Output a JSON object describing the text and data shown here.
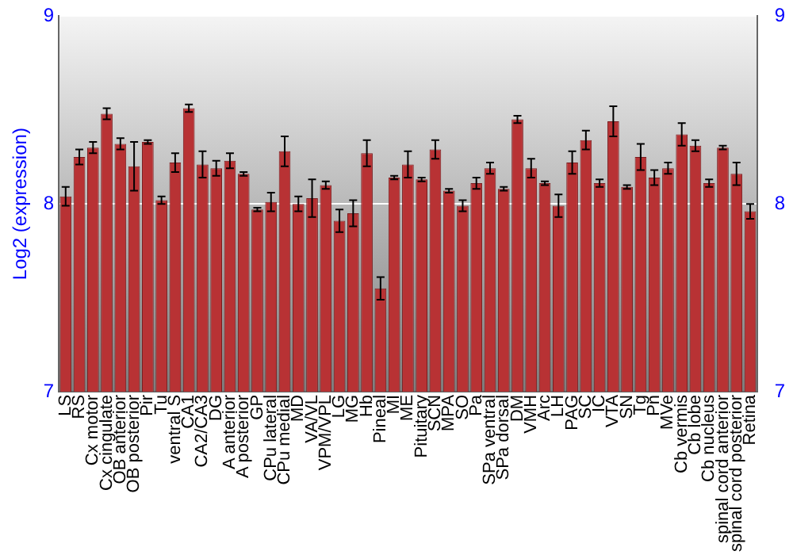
{
  "chart_data": {
    "type": "bar",
    "ylabel": "Log2 (expression)",
    "categories": [
      "LS",
      "RS",
      "Cx motor",
      "Cx cingulate",
      "OB anterior",
      "OB posterior",
      "Pir",
      "Tu",
      "ventral S",
      "CA1",
      "CA2/CA3",
      "DG",
      "A anterior",
      "A posterior",
      "GP",
      "CPu lateral",
      "CPu medial",
      "MD",
      "VA/VL",
      "VPM/VPL",
      "LG",
      "MG",
      "Hb",
      "Pineal",
      "MI",
      "ME",
      "Pituitary",
      "SCN",
      "MPA",
      "SO",
      "Pa",
      "SPa ventral",
      "SPa dorsal",
      "DM",
      "VMH",
      "Arc",
      "LH",
      "PAG",
      "SC",
      "IC",
      "VTA",
      "SN",
      "Tg",
      "Pn",
      "MVe",
      "Cb vermis",
      "Cb lobe",
      "Cb nucleus",
      "spinal cord anterior",
      "spinal cord posterior",
      "Retina"
    ],
    "values": [
      8.04,
      8.25,
      8.3,
      8.48,
      8.32,
      8.2,
      8.33,
      8.02,
      8.22,
      8.51,
      8.21,
      8.19,
      8.23,
      8.16,
      7.97,
      8.01,
      8.28,
      8.0,
      8.03,
      8.1,
      7.91,
      7.95,
      8.27,
      7.55,
      8.14,
      8.21,
      8.13,
      8.29,
      8.07,
      7.99,
      8.11,
      8.19,
      8.08,
      8.45,
      8.19,
      8.11,
      7.99,
      8.22,
      8.34,
      8.11,
      8.44,
      8.09,
      8.25,
      8.14,
      8.19,
      8.37,
      8.31,
      8.11,
      8.3,
      8.16,
      7.96
    ],
    "errors": [
      0.05,
      0.04,
      0.03,
      0.03,
      0.03,
      0.13,
      0.01,
      0.02,
      0.05,
      0.02,
      0.07,
      0.04,
      0.04,
      0.01,
      0.01,
      0.05,
      0.08,
      0.04,
      0.1,
      0.02,
      0.06,
      0.07,
      0.07,
      0.06,
      0.01,
      0.07,
      0.01,
      0.05,
      0.01,
      0.03,
      0.03,
      0.03,
      0.01,
      0.02,
      0.05,
      0.01,
      0.06,
      0.06,
      0.05,
      0.02,
      0.08,
      0.01,
      0.07,
      0.04,
      0.03,
      0.06,
      0.03,
      0.02,
      0.01,
      0.06,
      0.04
    ],
    "color": "#b83234",
    "ylim": [
      7,
      9
    ],
    "yticks": [
      7,
      8,
      9
    ],
    "y2lim": [
      7,
      9
    ],
    "y2ticks": [
      7,
      8,
      9
    ],
    "grid": "y"
  }
}
